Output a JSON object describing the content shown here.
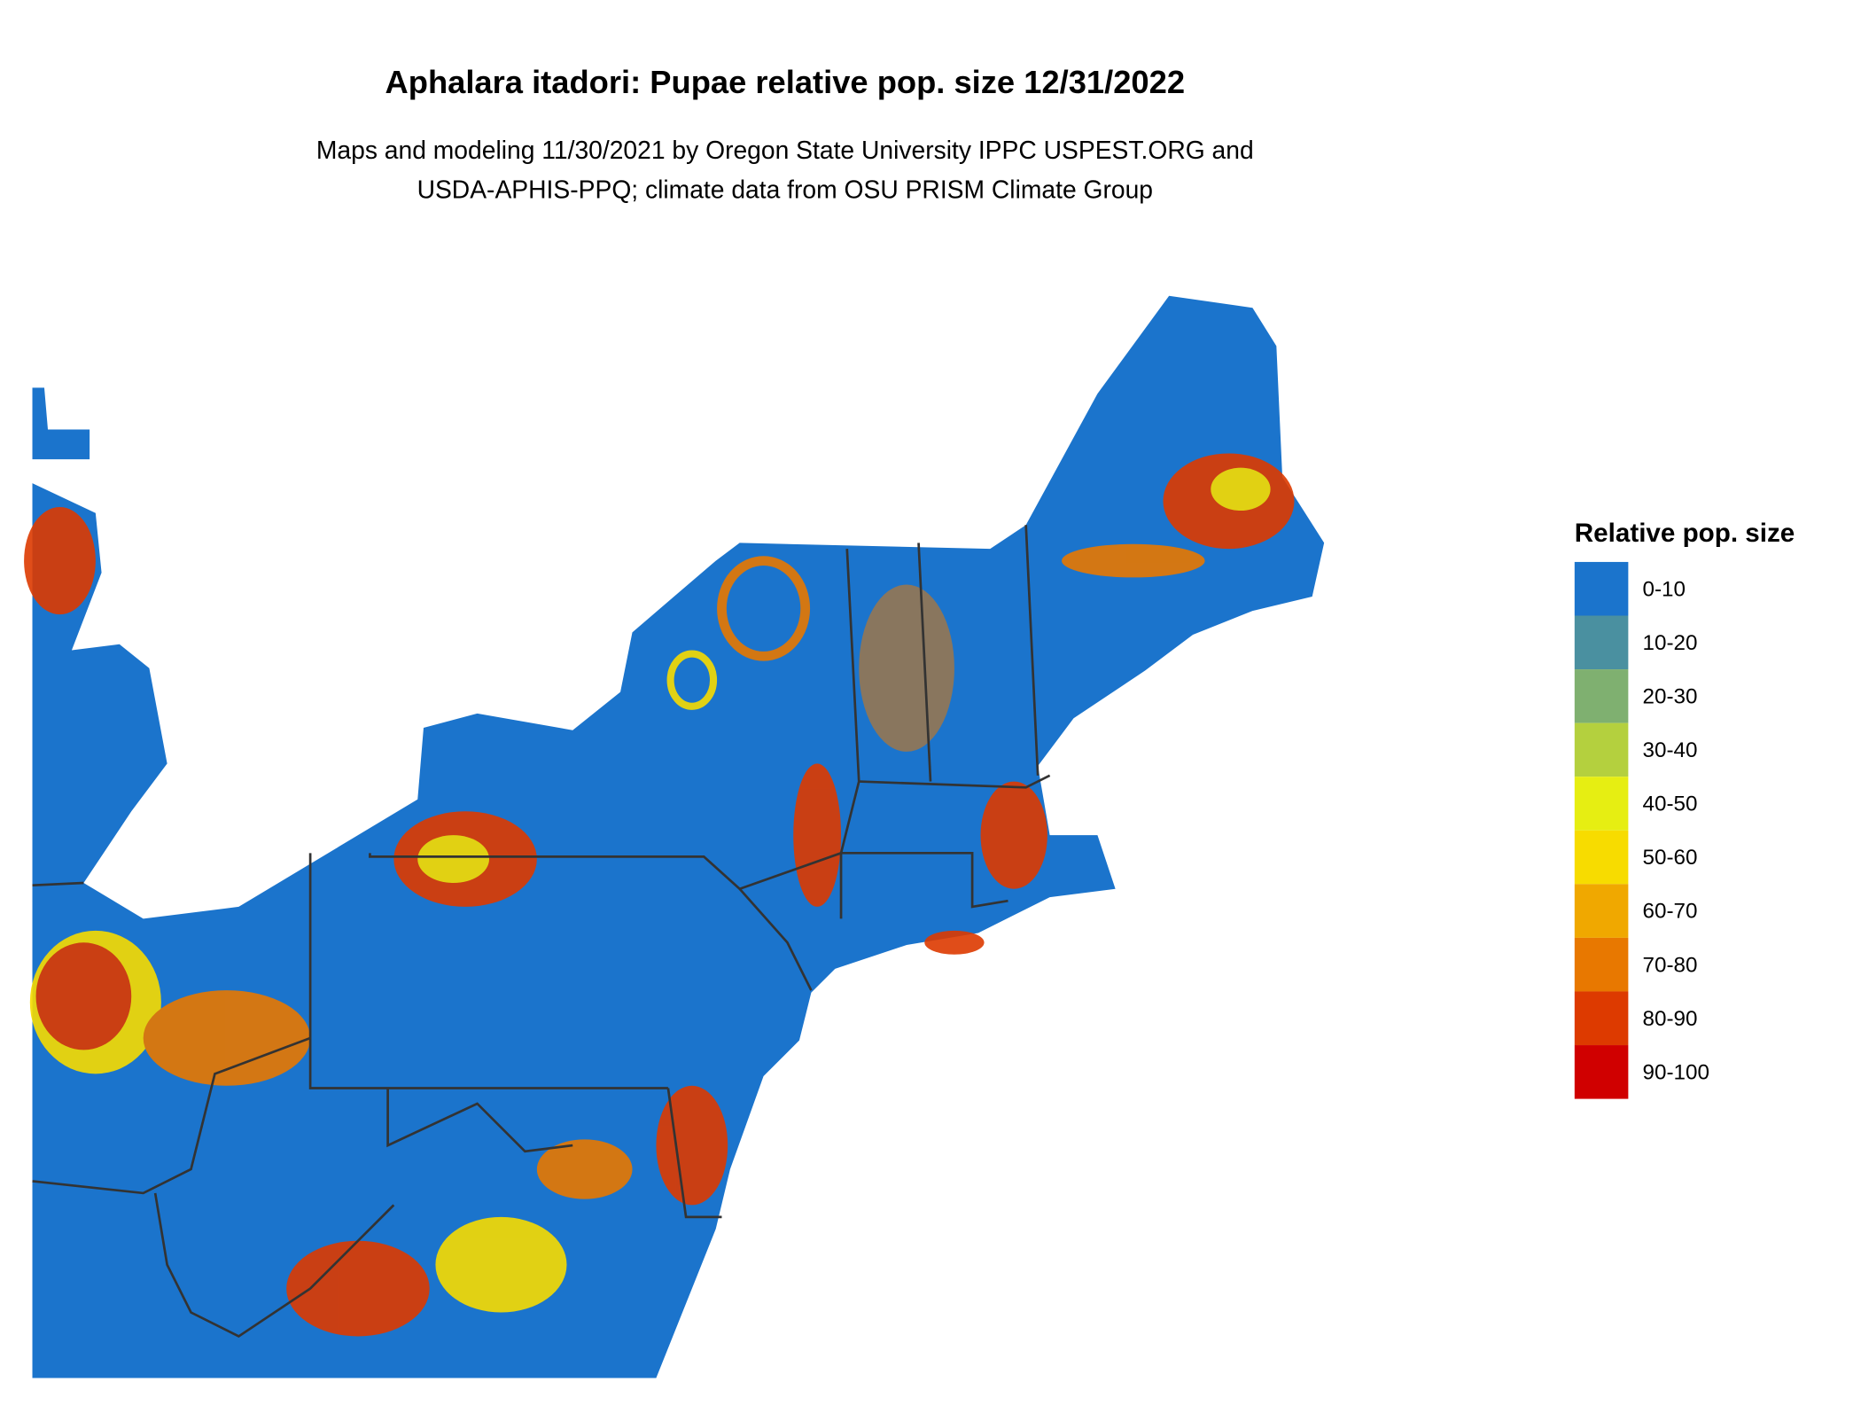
{
  "title": "Aphalara itadori: Pupae relative pop. size 12/31/2022",
  "subtitle": [
    "Maps and modeling 11/30/2021 by Oregon State University IPPC USPEST.ORG and",
    "USDA-APHIS-PPQ; climate data from OSU PRISM Climate Group"
  ],
  "legend": {
    "title": "Relative pop. size",
    "items": [
      {
        "label": "0-10",
        "color": "#1b74cc"
      },
      {
        "label": "10-20",
        "color": "#4a90a0"
      },
      {
        "label": "20-30",
        "color": "#7fb070"
      },
      {
        "label": "30-40",
        "color": "#b4d03e"
      },
      {
        "label": "40-50",
        "color": "#e6ee12"
      },
      {
        "label": "50-60",
        "color": "#f7dc00"
      },
      {
        "label": "60-70",
        "color": "#f0a800"
      },
      {
        "label": "70-80",
        "color": "#e87800"
      },
      {
        "label": "80-90",
        "color": "#dd3a00"
      },
      {
        "label": "90-100",
        "color": "#d00000"
      }
    ]
  }
}
